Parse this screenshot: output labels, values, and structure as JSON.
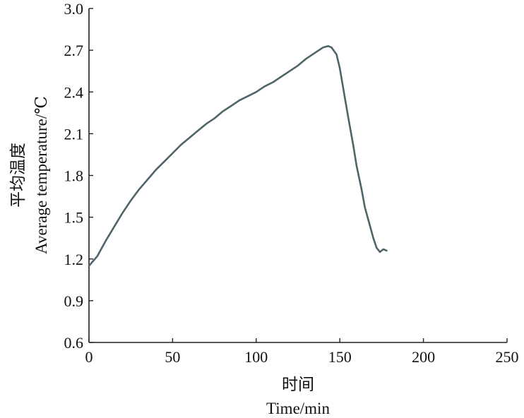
{
  "chart_data": {
    "type": "line",
    "xlabel_cn": "时间",
    "xlabel_en": "Time/min",
    "ylabel_cn": "平均温度",
    "ylabel_en": "Average temperature/℃",
    "xlim": [
      0,
      250
    ],
    "ylim": [
      0.6,
      3.0
    ],
    "xticks": [
      0,
      50,
      100,
      150,
      200,
      250
    ],
    "xtick_labels": [
      "0",
      "50",
      "100",
      "150",
      "200",
      "250"
    ],
    "yticks": [
      0.6,
      0.9,
      1.2,
      1.5,
      1.8,
      2.1,
      2.4,
      2.7,
      3.0
    ],
    "ytick_labels": [
      "0.6",
      "0.9",
      "1.2",
      "1.5",
      "1.8",
      "2.1",
      "2.4",
      "2.7",
      "3.0"
    ],
    "grid": false,
    "series": [
      {
        "color": "#4f6469",
        "x": [
          0,
          5,
          10,
          15,
          20,
          25,
          30,
          35,
          40,
          45,
          50,
          55,
          60,
          65,
          70,
          75,
          80,
          85,
          90,
          95,
          100,
          105,
          110,
          115,
          120,
          125,
          130,
          135,
          140,
          143,
          145,
          148,
          150,
          152,
          155,
          158,
          160,
          163,
          165,
          168,
          170,
          172,
          174,
          176,
          178
        ],
        "y": [
          1.15,
          1.22,
          1.33,
          1.43,
          1.53,
          1.62,
          1.7,
          1.77,
          1.84,
          1.9,
          1.96,
          2.02,
          2.07,
          2.12,
          2.17,
          2.21,
          2.26,
          2.3,
          2.34,
          2.37,
          2.4,
          2.44,
          2.47,
          2.51,
          2.55,
          2.59,
          2.64,
          2.68,
          2.72,
          2.73,
          2.72,
          2.67,
          2.57,
          2.43,
          2.22,
          2.02,
          1.87,
          1.7,
          1.57,
          1.44,
          1.35,
          1.28,
          1.25,
          1.27,
          1.26
        ]
      }
    ]
  }
}
